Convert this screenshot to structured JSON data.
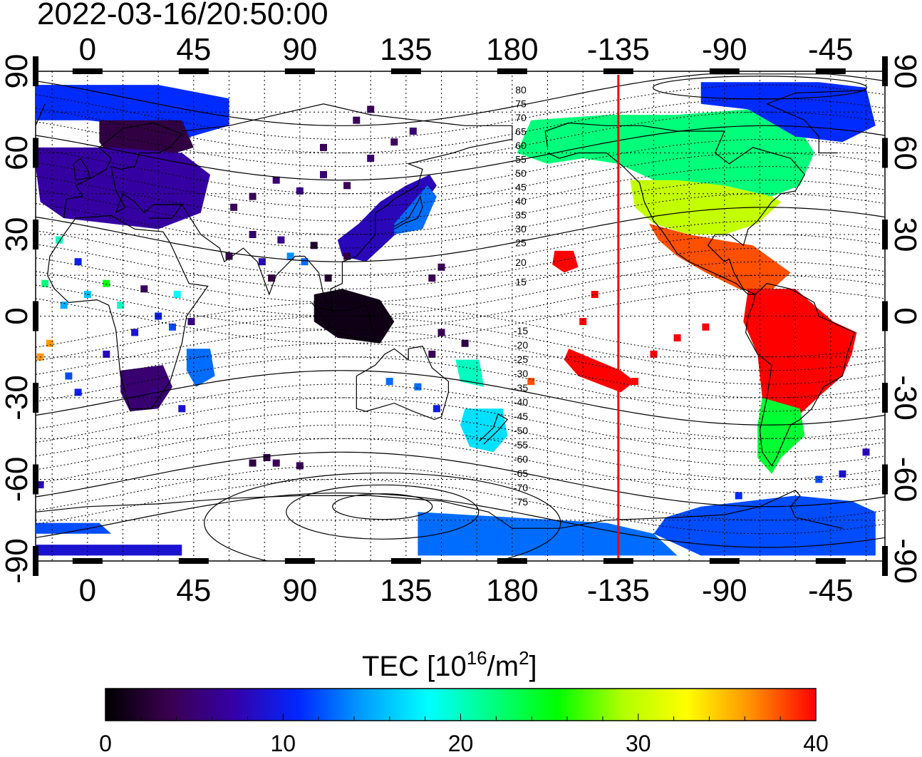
{
  "timestamp": "2022-03-16/20:50:00",
  "map": {
    "lon_ticks": [
      "0",
      "45",
      "90",
      "135",
      "180",
      "-135",
      "-90",
      "-45"
    ],
    "lat_ticks": [
      "90",
      "60",
      "30",
      "0",
      "-30",
      "-60",
      "-90"
    ],
    "terminator_lon": -135,
    "terminator_color": "#ff0000",
    "grid": "dotted"
  },
  "contours": {
    "north_labels": [
      "80",
      "75",
      "70",
      "65",
      "60",
      "55",
      "50",
      "45",
      "40",
      "35",
      "30",
      "25",
      "20",
      "15"
    ],
    "south_labels": [
      "-15",
      "-20",
      "-25",
      "-30",
      "-35",
      "-40",
      "-45",
      "-50",
      "-55",
      "-60",
      "-65",
      "-70",
      "-75"
    ]
  },
  "colorbar": {
    "title_main": "TEC  [10",
    "title_sup1": "16",
    "title_mid": "/m",
    "title_sup2": "2",
    "title_end": "]",
    "ticks": [
      "0",
      "10",
      "20",
      "30",
      "40"
    ],
    "min": 0,
    "max": 40,
    "colors": [
      "#000000",
      "#3a0050",
      "#3500a8",
      "#0028ff",
      "#00a0ff",
      "#00ffff",
      "#00ff80",
      "#00ff00",
      "#b0ff00",
      "#ffff00",
      "#ff9000",
      "#ff0000"
    ]
  },
  "tec_regions": [
    {
      "region": "north-america",
      "tec": 32,
      "color": "#f0c000"
    },
    {
      "region": "central-america",
      "tec": 38,
      "color": "#ff2000"
    },
    {
      "region": "south-america",
      "tec": 40,
      "color": "#ff0000"
    },
    {
      "region": "canada-alaska",
      "tec": 24,
      "color": "#40e040"
    },
    {
      "region": "arctic-north-america",
      "tec": 12,
      "color": "#1050ff"
    },
    {
      "region": "europe",
      "tec": 8,
      "color": "#2a20c8"
    },
    {
      "region": "scandinavia",
      "tec": 4,
      "color": "#3a1060"
    },
    {
      "region": "east-asia",
      "tec": 10,
      "color": "#2030e0"
    },
    {
      "region": "southeast-asia",
      "tec": 2,
      "color": "#200030"
    },
    {
      "region": "southern-africa",
      "tec": 6,
      "color": "#3a1070"
    },
    {
      "region": "antarctic",
      "tec": 13,
      "color": "#2070ff"
    },
    {
      "region": "new-zealand",
      "tec": 17,
      "color": "#40c8f0"
    },
    {
      "region": "hawaii",
      "tec": 40,
      "color": "#ff0000"
    }
  ]
}
